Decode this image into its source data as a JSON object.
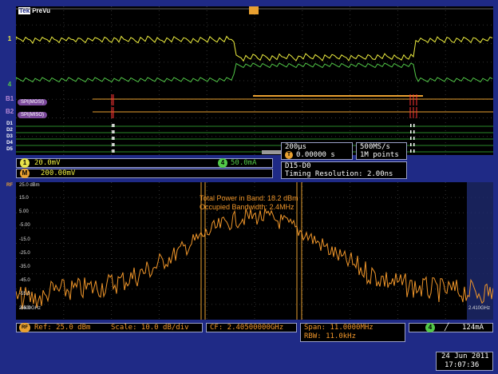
{
  "header": {
    "brand": "Tek",
    "mode": "PreVu"
  },
  "channels": {
    "ch1_marker": "1",
    "ch4_marker": "4",
    "bus1": {
      "marker": "B1",
      "label": "SPI(MOSI)"
    },
    "bus2": {
      "marker": "B2",
      "label": "SPI(MISO)"
    },
    "digital": [
      "D1",
      "D2",
      "D3",
      "D4",
      "D5"
    ]
  },
  "readouts": {
    "ch1": {
      "num": "1",
      "value": "20.0mV"
    },
    "ch4": {
      "num": "4",
      "value": "50.0mA"
    },
    "math": {
      "num": "M",
      "value": "200.00mV"
    },
    "timebase": {
      "scale": "200µs",
      "trigger_pos": "0.00000 s"
    },
    "acq": {
      "rate": "500MS/s",
      "points": "1M points"
    },
    "digital": {
      "label": "D15-D0",
      "resolution": "Timing Resolution: 2.00ns"
    }
  },
  "spectrum": {
    "top_ref_label": "25.0 dBm",
    "y_labels": [
      "15.0",
      "5.00",
      "-5.00",
      "-15.0",
      "-25.0",
      "-35.0",
      "-45.0",
      "-55.0",
      "-65.0"
    ],
    "start_freq": "2.400GHz",
    "stop_freq": "2.410GHz",
    "total_power": "Total Power in Band: 18.2 dBm",
    "occupied_bw": "Occupied Bandwidth: 2.4MHz",
    "rf_marker": "RF",
    "ref_level": "Ref: 25.0 dBm",
    "scale": "Scale: 10.0 dB/div",
    "cf": "CF: 2.40500000GHz",
    "span": "Span: 11.0000MHz",
    "rbw": "RBW: 11.0kHz",
    "trig": {
      "num": "4",
      "value": "124mA"
    }
  },
  "datetime": {
    "date": "24 Jun 2011",
    "time": "17:07:36"
  },
  "colors": {
    "ch1": "#f0f040",
    "ch4": "#52c948",
    "bus": "#7c4a9c",
    "spectrum": "#f0962a",
    "frame": "#1f2a86"
  }
}
